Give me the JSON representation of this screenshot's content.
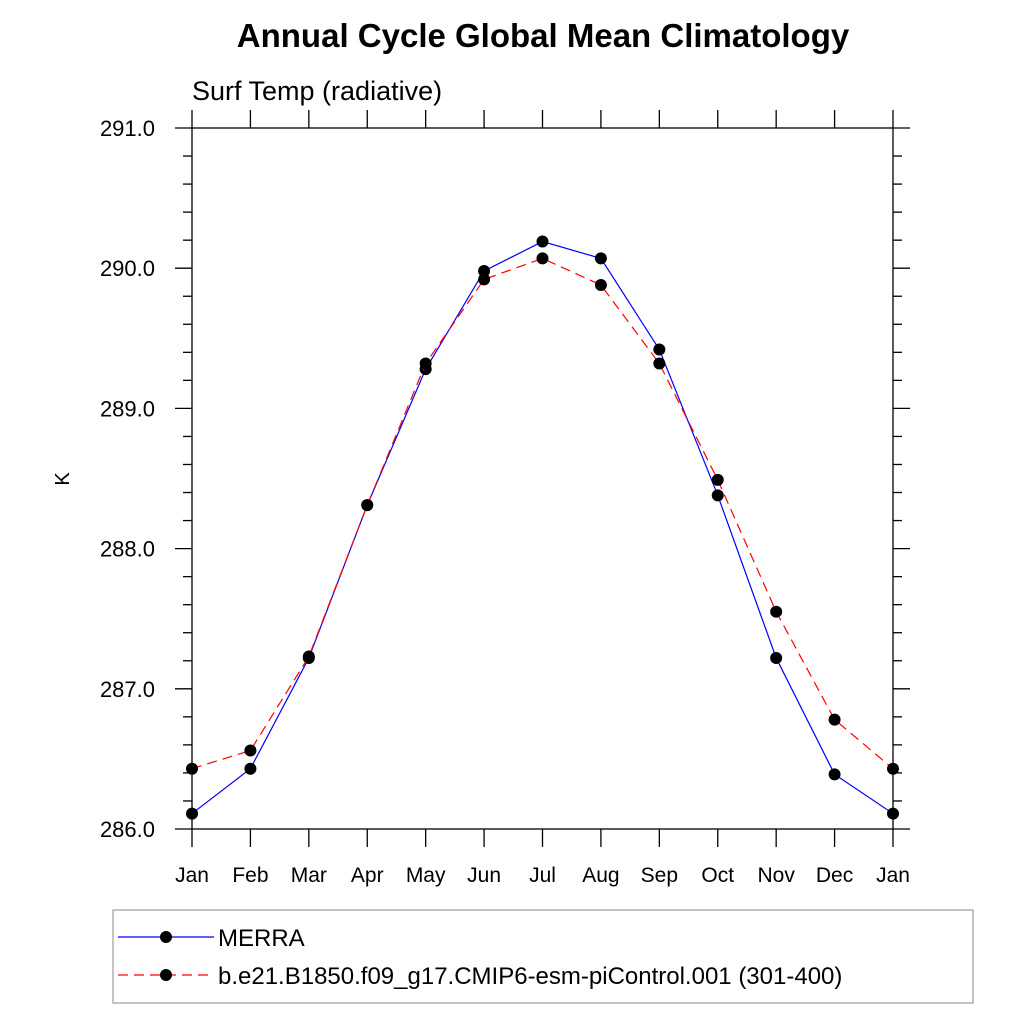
{
  "chart_data": {
    "type": "line",
    "title": "Annual Cycle Global Mean Climatology",
    "subtitle": "Surf Temp (radiative)",
    "xlabel": "",
    "ylabel": "K",
    "categories": [
      "Jan",
      "Feb",
      "Mar",
      "Apr",
      "May",
      "Jun",
      "Jul",
      "Aug",
      "Sep",
      "Oct",
      "Nov",
      "Dec",
      "Jan"
    ],
    "ylim": [
      286.0,
      291.0
    ],
    "yticks": [
      "286.0",
      "287.0",
      "288.0",
      "289.0",
      "290.0",
      "291.0"
    ],
    "grid": false,
    "legend_position": "bottom",
    "series": [
      {
        "name": "MERRA",
        "color": "#0000ff",
        "dash": "solid",
        "values": [
          286.11,
          286.43,
          287.22,
          288.31,
          289.28,
          289.98,
          290.19,
          290.07,
          289.42,
          288.38,
          287.22,
          286.39,
          286.11
        ]
      },
      {
        "name": "b.e21.B1850.f09_g17.CMIP6-esm-piControl.001 (301-400)",
        "color": "#ff0000",
        "dash": "dashed",
        "values": [
          286.43,
          286.56,
          287.23,
          288.31,
          289.32,
          289.92,
          290.07,
          289.88,
          289.32,
          288.49,
          287.55,
          286.78,
          286.43
        ]
      }
    ]
  }
}
